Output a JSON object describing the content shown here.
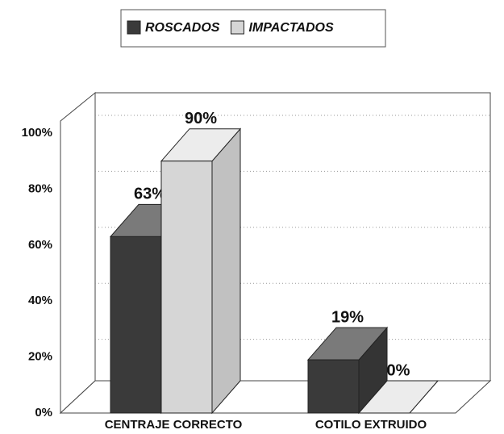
{
  "chart_data": {
    "type": "bar3d",
    "categories": [
      "CENTRAJE CORRECTO",
      "COTILO EXTRUIDO"
    ],
    "series": [
      {
        "name": "ROSCADOS",
        "color": "#3a3a3a",
        "values": [
          63,
          19
        ],
        "value_labels": [
          "63%",
          "19%"
        ]
      },
      {
        "name": "IMPACTADOS",
        "color": "#d6d6d6",
        "values": [
          90,
          0
        ],
        "value_labels": [
          "90%",
          "0%"
        ]
      }
    ],
    "ylim": [
      0,
      100
    ],
    "yticks": [
      {
        "value": 0,
        "label": "0%"
      },
      {
        "value": 20,
        "label": "20%"
      },
      {
        "value": 40,
        "label": "40%"
      },
      {
        "value": 60,
        "label": "60%"
      },
      {
        "value": 80,
        "label": "80%"
      },
      {
        "value": 100,
        "label": "100%"
      }
    ],
    "grid": true
  }
}
